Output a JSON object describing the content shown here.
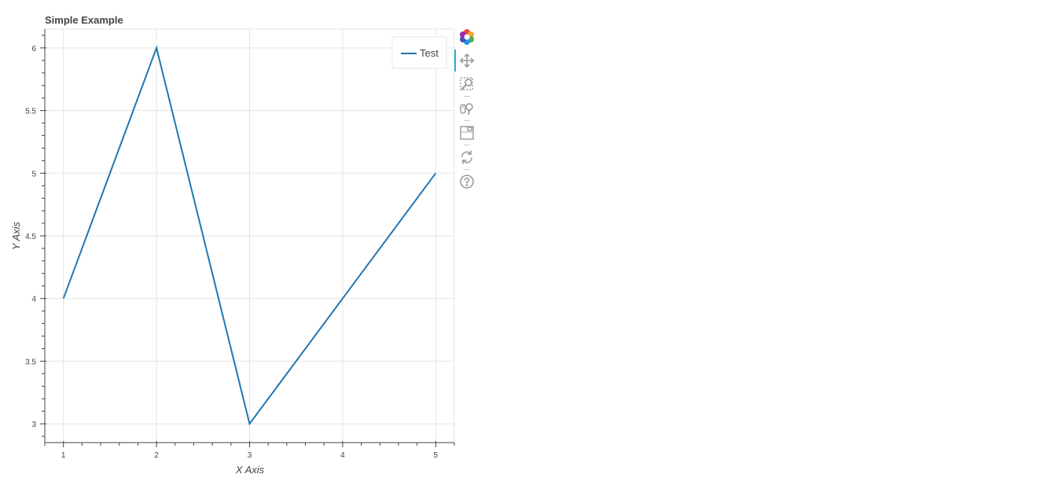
{
  "chart_data": {
    "type": "line",
    "title": "Simple Example",
    "xlabel": "X Axis",
    "ylabel": "Y Axis",
    "xlim": [
      0.8,
      5.2
    ],
    "ylim": [
      2.85,
      6.15
    ],
    "x_ticks": [
      1,
      2,
      3,
      4,
      5
    ],
    "y_ticks": [
      3,
      3.5,
      4,
      4.5,
      5,
      5.5,
      6
    ],
    "grid": true,
    "legend_position": "top-right",
    "series": [
      {
        "name": "Test",
        "color": "#1f77b4",
        "x": [
          1,
          2,
          3,
          4,
          5
        ],
        "y": [
          4,
          6,
          3,
          4,
          5
        ]
      }
    ]
  },
  "toolbar": {
    "tools": [
      {
        "icon": "bokeh-logo-icon",
        "active": false
      },
      {
        "icon": "pan-icon",
        "active": true
      },
      {
        "icon": "box-zoom-icon",
        "active": false
      },
      {
        "icon": "wheel-zoom-icon",
        "active": false
      },
      {
        "icon": "save-icon",
        "active": false
      },
      {
        "icon": "reset-icon",
        "active": false
      },
      {
        "icon": "help-icon",
        "active": false
      }
    ]
  }
}
